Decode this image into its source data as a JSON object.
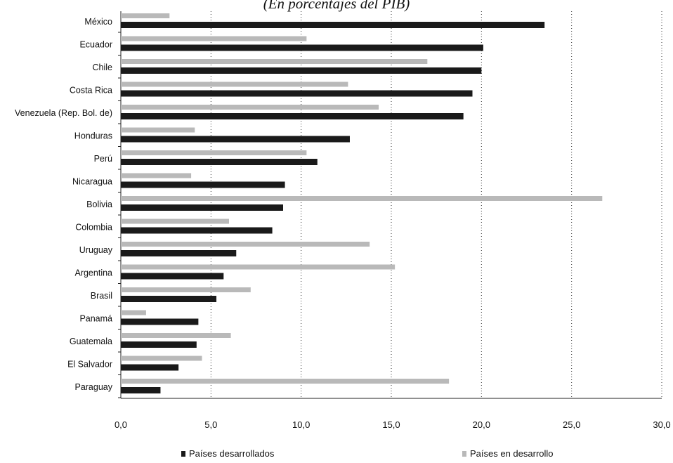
{
  "chart_data": {
    "type": "bar",
    "orientation": "horizontal",
    "subtitle": "(En porcentajes del PIB)",
    "categories": [
      "México",
      "Ecuador",
      "Chile",
      "Costa Rica",
      "Venezuela (Rep. Bol. de)",
      "Honduras",
      "Perú",
      "Nicaragua",
      "Bolivia",
      "Colombia",
      "Uruguay",
      "Argentina",
      "Brasil",
      "Panamá",
      "Guatemala",
      "El Salvador",
      "Paraguay"
    ],
    "series": [
      {
        "name": "Países desarrollados",
        "color": "#1a1a1a",
        "values": [
          23.5,
          20.1,
          20.0,
          19.5,
          19.0,
          12.7,
          10.9,
          9.1,
          9.0,
          8.4,
          6.4,
          5.7,
          5.3,
          4.3,
          4.2,
          3.2,
          2.2
        ]
      },
      {
        "name": "Países en desarrollo",
        "color": "#b9b9b9",
        "values": [
          2.7,
          10.3,
          17.0,
          12.6,
          14.3,
          4.1,
          10.3,
          3.9,
          26.7,
          6.0,
          13.8,
          15.2,
          7.2,
          1.4,
          6.1,
          4.5,
          18.2
        ]
      }
    ],
    "x_ticks": [
      "0,0",
      "5,0",
      "10,0",
      "15,0",
      "20,0",
      "25,0",
      "30,0"
    ],
    "xlim": [
      0,
      30
    ],
    "grid": "vertical dotted",
    "legend": "bottom"
  }
}
